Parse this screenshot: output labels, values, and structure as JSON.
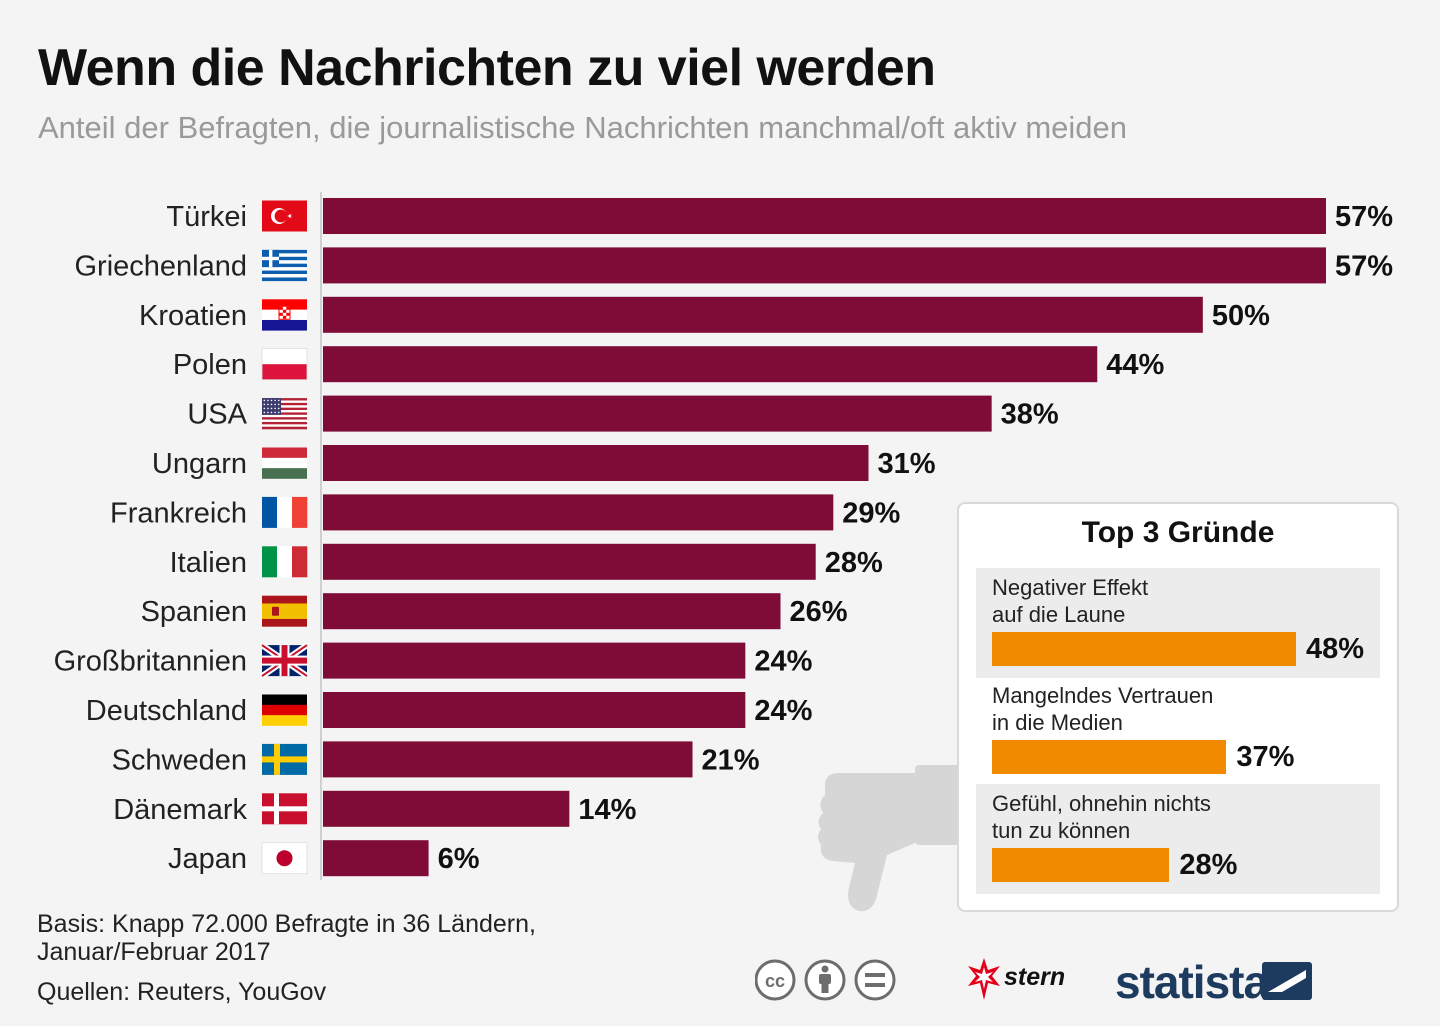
{
  "title": "Wenn die Nachrichten zu viel werden",
  "subtitle": "Anteil der Befragten, die journalistische Nachrichten manchmal/oft aktiv meiden",
  "chart_data": {
    "type": "bar",
    "orientation": "horizontal",
    "title": "Wenn die Nachrichten zu viel werden",
    "subtitle": "Anteil der Befragten, die journalistische Nachrichten manchmal/oft aktiv meiden",
    "categories": [
      "Türkei",
      "Griechenland",
      "Kroatien",
      "Polen",
      "USA",
      "Ungarn",
      "Frankreich",
      "Italien",
      "Spanien",
      "Großbritannien",
      "Deutschland",
      "Schweden",
      "Dänemark",
      "Japan"
    ],
    "flags": [
      "turkey-flag-icon",
      "greece-flag-icon",
      "croatia-flag-icon",
      "poland-flag-icon",
      "usa-flag-icon",
      "hungary-flag-icon",
      "france-flag-icon",
      "italy-flag-icon",
      "spain-flag-icon",
      "uk-flag-icon",
      "germany-flag-icon",
      "sweden-flag-icon",
      "denmark-flag-icon",
      "japan-flag-icon"
    ],
    "values": [
      57,
      57,
      50,
      44,
      38,
      31,
      29,
      28,
      26,
      24,
      24,
      21,
      14,
      6
    ],
    "labels": [
      "57%",
      "57%",
      "50%",
      "44%",
      "38%",
      "31%",
      "29%",
      "28%",
      "26%",
      "24%",
      "24%",
      "21%",
      "14%",
      "6%"
    ],
    "unit": "%",
    "xlim": [
      0,
      57
    ],
    "bar_color": "#7e0c37",
    "grid": false
  },
  "reasons": {
    "title": "Top 3 Gründe",
    "bar_color": "#f28a00",
    "items": [
      {
        "label_line1": "Negativer Effekt",
        "label_line2": "auf die Laune",
        "value": 48,
        "label": "48%"
      },
      {
        "label_line1": "Mangelndes Vertrauen",
        "label_line2": "in die Medien",
        "value": 37,
        "label": "37%"
      },
      {
        "label_line1": "Gefühl, ohnehin nichts",
        "label_line2": "tun zu können",
        "value": 28,
        "label": "28%"
      }
    ]
  },
  "footer": {
    "basis_line1": "Basis: Knapp 72.000 Befragte in 36 Ländern,",
    "basis_line2": "Januar/Februar 2017",
    "sources": "Quellen: Reuters, YouGov"
  },
  "branding": {
    "stern": "stern",
    "statista": "statista",
    "license_icons": [
      "cc-icon",
      "attribution-icon",
      "no-derivatives-icon"
    ]
  },
  "colors": {
    "background": "#f4f4f4",
    "bar": "#7e0c37",
    "accent": "#f28a00",
    "subtitle": "#9a9a9a",
    "statista": "#1d3a5f"
  }
}
